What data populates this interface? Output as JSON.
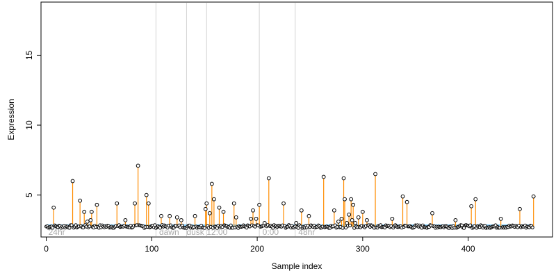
{
  "chart_data": {
    "type": "scatter",
    "title": "",
    "xlabel": "Sample index",
    "ylabel": "Expression",
    "xlim": [
      -5,
      480
    ],
    "ylim": [
      2.0,
      18.8
    ],
    "x_ticks": [
      0,
      100,
      200,
      300,
      400
    ],
    "y_ticks": [
      5,
      10,
      15
    ],
    "baseline": 2.75,
    "colors": {
      "stem": "#ff8c00",
      "baseline": "#87cefa",
      "point_fill": "#ffffff",
      "point_stroke": "#000000",
      "divider": "#d3d3d3",
      "condition_label": "#a9a9a9"
    },
    "condition_dividers": [
      104,
      133,
      152,
      202,
      236
    ],
    "conditions": [
      {
        "label": "24hr",
        "x": 2
      },
      {
        "label": "dawn",
        "x": 107
      },
      {
        "label": "dusk",
        "x": 133
      },
      {
        "label": "12:00",
        "x": 152
      },
      {
        "label": "0:00",
        "x": 205
      },
      {
        "label": "48hr",
        "x": 239
      }
    ],
    "n_samples": 462,
    "points": [
      {
        "x": 7,
        "y": 4.1
      },
      {
        "x": 25,
        "y": 6.0
      },
      {
        "x": 32,
        "y": 4.6
      },
      {
        "x": 36,
        "y": 3.8
      },
      {
        "x": 39,
        "y": 3.1
      },
      {
        "x": 42,
        "y": 3.2
      },
      {
        "x": 43,
        "y": 3.8
      },
      {
        "x": 48,
        "y": 4.3
      },
      {
        "x": 67,
        "y": 4.4
      },
      {
        "x": 75,
        "y": 3.2
      },
      {
        "x": 84,
        "y": 4.4
      },
      {
        "x": 87,
        "y": 7.1
      },
      {
        "x": 95,
        "y": 5.0
      },
      {
        "x": 97,
        "y": 4.4
      },
      {
        "x": 109,
        "y": 3.5
      },
      {
        "x": 117,
        "y": 3.5
      },
      {
        "x": 124,
        "y": 3.4
      },
      {
        "x": 128,
        "y": 3.2
      },
      {
        "x": 141,
        "y": 3.5
      },
      {
        "x": 151,
        "y": 4.0
      },
      {
        "x": 152,
        "y": 4.4
      },
      {
        "x": 155,
        "y": 3.7
      },
      {
        "x": 157,
        "y": 5.8
      },
      {
        "x": 159,
        "y": 4.7
      },
      {
        "x": 164,
        "y": 4.1
      },
      {
        "x": 168,
        "y": 3.8
      },
      {
        "x": 178,
        "y": 4.4
      },
      {
        "x": 180,
        "y": 3.4
      },
      {
        "x": 194,
        "y": 3.3
      },
      {
        "x": 196,
        "y": 3.9
      },
      {
        "x": 199,
        "y": 3.3
      },
      {
        "x": 202,
        "y": 4.3
      },
      {
        "x": 207,
        "y": 3.0
      },
      {
        "x": 211,
        "y": 6.2
      },
      {
        "x": 225,
        "y": 4.4
      },
      {
        "x": 237,
        "y": 3.0
      },
      {
        "x": 242,
        "y": 3.9
      },
      {
        "x": 249,
        "y": 3.5
      },
      {
        "x": 263,
        "y": 6.3
      },
      {
        "x": 273,
        "y": 3.9
      },
      {
        "x": 277,
        "y": 3.1
      },
      {
        "x": 280,
        "y": 3.3
      },
      {
        "x": 282,
        "y": 6.2
      },
      {
        "x": 283,
        "y": 4.7
      },
      {
        "x": 285,
        "y": 3.0
      },
      {
        "x": 287,
        "y": 3.6
      },
      {
        "x": 289,
        "y": 4.7
      },
      {
        "x": 290,
        "y": 3.2
      },
      {
        "x": 291,
        "y": 4.3
      },
      {
        "x": 293,
        "y": 3.0
      },
      {
        "x": 296,
        "y": 3.4
      },
      {
        "x": 300,
        "y": 3.8
      },
      {
        "x": 304,
        "y": 3.2
      },
      {
        "x": 312,
        "y": 6.5
      },
      {
        "x": 328,
        "y": 3.3
      },
      {
        "x": 338,
        "y": 4.9
      },
      {
        "x": 342,
        "y": 4.5
      },
      {
        "x": 366,
        "y": 3.7
      },
      {
        "x": 388,
        "y": 3.2
      },
      {
        "x": 403,
        "y": 4.2
      },
      {
        "x": 407,
        "y": 4.7
      },
      {
        "x": 431,
        "y": 3.3
      },
      {
        "x": 449,
        "y": 4.0
      },
      {
        "x": 462,
        "y": 4.9
      }
    ]
  }
}
